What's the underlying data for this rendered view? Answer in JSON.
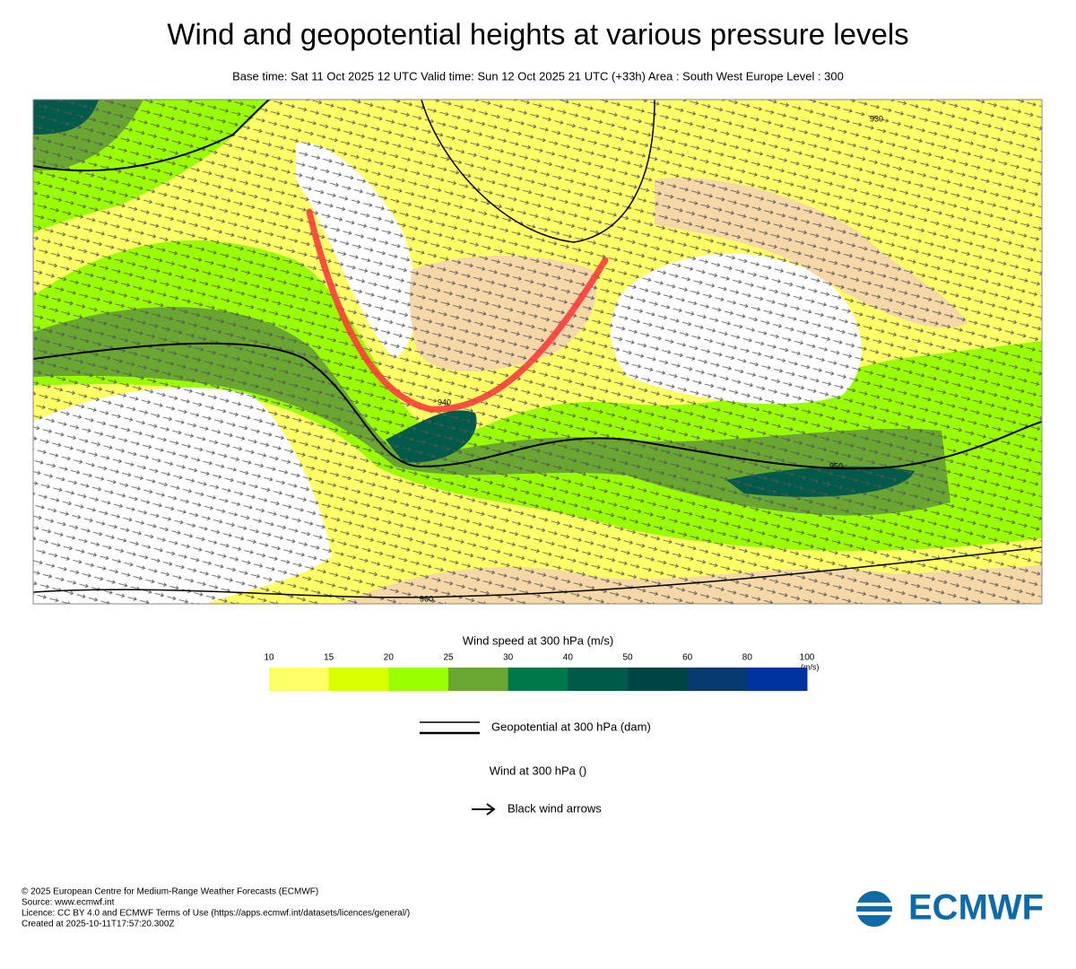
{
  "header": {
    "title": "Wind and geopotential heights at various pressure levels",
    "subtitle": "Base time: Sat 11 Oct 2025 12 UTC Valid time: Sun 12 Oct 2025 21 UTC (+33h) Area : South West Europe Level : 300"
  },
  "map": {
    "contour_labels": [
      "930",
      "940",
      "950",
      "960"
    ]
  },
  "colorbar": {
    "title": "Wind speed at 300 hPa (m/s)",
    "unit": "(m/s)",
    "ticks": [
      10,
      15,
      20,
      25,
      30,
      40,
      50,
      60,
      80,
      100
    ],
    "colors": [
      "#ffff66",
      "#d9ff00",
      "#99ff00",
      "#6aa632",
      "#00784a",
      "#005a4a",
      "#004545",
      "#063a70",
      "#0033a0"
    ]
  },
  "legend": {
    "contour": "Geopotential at 300 hPa (dam)",
    "wind_title": "Wind at 300 hPa ()",
    "arrows": "Black wind arrows"
  },
  "footer": {
    "lines": [
      "© 2025 European Centre for Medium-Range Weather Forecasts (ECMWF)",
      "Source: www.ecmwf.int",
      "Licence: CC BY 4.0 and ECMWF Terms of Use (https://apps.ecmwf.int/datasets/licences/general/)",
      "Created at 2025-10-11T17:57:20.300Z"
    ],
    "logo": "ECMWF"
  }
}
